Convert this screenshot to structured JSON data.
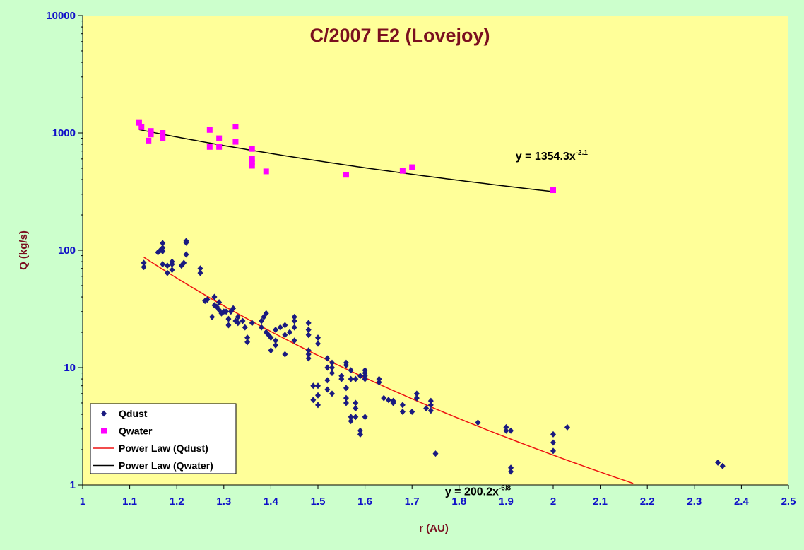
{
  "chart_data": {
    "type": "scatter",
    "title": "C/2007 E2 (Lovejoy)",
    "xlabel": "r (AU)",
    "ylabel": "Q (kg/s)",
    "xlim": [
      1,
      2.5
    ],
    "ylim": [
      1,
      10000
    ],
    "y_scale": "log",
    "x_ticks": [
      "1",
      "1.1",
      "1.2",
      "1.3",
      "1.4",
      "1.5",
      "1.6",
      "1.7",
      "1.8",
      "1.9",
      "2",
      "2.1",
      "2.2",
      "2.3",
      "2.4",
      "2.5"
    ],
    "y_ticks": [
      "1",
      "10",
      "100",
      "1000",
      "10000"
    ],
    "legend_position": "bottom-left",
    "plot_background": "#ffff99",
    "page_background": "#ccffcc",
    "series": [
      {
        "name": "Qdust",
        "color": "#1a1a80",
        "marker": "diamond",
        "points": [
          [
            1.13,
            72
          ],
          [
            1.13,
            78
          ],
          [
            1.16,
            96
          ],
          [
            1.165,
            100
          ],
          [
            1.17,
            105
          ],
          [
            1.17,
            115
          ],
          [
            1.17,
            98
          ],
          [
            1.17,
            76
          ],
          [
            1.18,
            74
          ],
          [
            1.18,
            64
          ],
          [
            1.19,
            68
          ],
          [
            1.19,
            80
          ],
          [
            1.19,
            76
          ],
          [
            1.21,
            74
          ],
          [
            1.215,
            78
          ],
          [
            1.22,
            92
          ],
          [
            1.22,
            120
          ],
          [
            1.22,
            116
          ],
          [
            1.25,
            70
          ],
          [
            1.25,
            64
          ],
          [
            1.26,
            37
          ],
          [
            1.265,
            38
          ],
          [
            1.275,
            27
          ],
          [
            1.28,
            40
          ],
          [
            1.28,
            34
          ],
          [
            1.285,
            33
          ],
          [
            1.29,
            31
          ],
          [
            1.29,
            36
          ],
          [
            1.295,
            29
          ],
          [
            1.3,
            30
          ],
          [
            1.305,
            30
          ],
          [
            1.31,
            26
          ],
          [
            1.31,
            23
          ],
          [
            1.315,
            30
          ],
          [
            1.32,
            32
          ],
          [
            1.325,
            25
          ],
          [
            1.33,
            24
          ],
          [
            1.33,
            27
          ],
          [
            1.34,
            25
          ],
          [
            1.345,
            22
          ],
          [
            1.35,
            18
          ],
          [
            1.35,
            16.5
          ],
          [
            1.36,
            24
          ],
          [
            1.38,
            22
          ],
          [
            1.38,
            25
          ],
          [
            1.385,
            27
          ],
          [
            1.39,
            29
          ],
          [
            1.39,
            20
          ],
          [
            1.395,
            19
          ],
          [
            1.4,
            14
          ],
          [
            1.4,
            18
          ],
          [
            1.41,
            17
          ],
          [
            1.41,
            15.5
          ],
          [
            1.41,
            21
          ],
          [
            1.42,
            22
          ],
          [
            1.43,
            23
          ],
          [
            1.43,
            19
          ],
          [
            1.43,
            13
          ],
          [
            1.44,
            20
          ],
          [
            1.45,
            17
          ],
          [
            1.45,
            22
          ],
          [
            1.45,
            25
          ],
          [
            1.45,
            27
          ],
          [
            1.48,
            24
          ],
          [
            1.48,
            21
          ],
          [
            1.48,
            19
          ],
          [
            1.48,
            14
          ],
          [
            1.48,
            13
          ],
          [
            1.48,
            12
          ],
          [
            1.49,
            7
          ],
          [
            1.49,
            5.3
          ],
          [
            1.5,
            4.8
          ],
          [
            1.5,
            5.8
          ],
          [
            1.5,
            7
          ],
          [
            1.5,
            16
          ],
          [
            1.5,
            18
          ],
          [
            1.52,
            12
          ],
          [
            1.52,
            10
          ],
          [
            1.52,
            7.8
          ],
          [
            1.52,
            6.5
          ],
          [
            1.53,
            11
          ],
          [
            1.53,
            10
          ],
          [
            1.53,
            9
          ],
          [
            1.53,
            6
          ],
          [
            1.55,
            8.5
          ],
          [
            1.55,
            8
          ],
          [
            1.56,
            11
          ],
          [
            1.56,
            10.5
          ],
          [
            1.56,
            6.7
          ],
          [
            1.56,
            5.5
          ],
          [
            1.56,
            5
          ],
          [
            1.57,
            9.5
          ],
          [
            1.57,
            8
          ],
          [
            1.57,
            3.8
          ],
          [
            1.57,
            3.5
          ],
          [
            1.58,
            5
          ],
          [
            1.58,
            4.5
          ],
          [
            1.58,
            3.8
          ],
          [
            1.58,
            8
          ],
          [
            1.59,
            8.5
          ],
          [
            1.59,
            2.9
          ],
          [
            1.59,
            2.7
          ],
          [
            1.6,
            8
          ],
          [
            1.6,
            9.5
          ],
          [
            1.6,
            9
          ],
          [
            1.6,
            3.8
          ],
          [
            1.6,
            8.5
          ],
          [
            1.63,
            7.5
          ],
          [
            1.63,
            8
          ],
          [
            1.64,
            5.5
          ],
          [
            1.65,
            5.3
          ],
          [
            1.66,
            5.2
          ],
          [
            1.66,
            5
          ],
          [
            1.68,
            4.8
          ],
          [
            1.68,
            4.2
          ],
          [
            1.7,
            4.2
          ],
          [
            1.71,
            5.5
          ],
          [
            1.71,
            6
          ],
          [
            1.73,
            4.5
          ],
          [
            1.74,
            4.3
          ],
          [
            1.74,
            4.8
          ],
          [
            1.74,
            5.2
          ],
          [
            1.75,
            1.85
          ],
          [
            1.84,
            3.4
          ],
          [
            1.9,
            3.1
          ],
          [
            1.9,
            2.9
          ],
          [
            1.91,
            2.9
          ],
          [
            1.91,
            1.4
          ],
          [
            1.91,
            1.3
          ],
          [
            2,
            2.7
          ],
          [
            2,
            2.3
          ],
          [
            2,
            1.95
          ],
          [
            2.03,
            3.1
          ],
          [
            2.35,
            1.55
          ],
          [
            2.36,
            1.45
          ]
        ]
      },
      {
        "name": "Qwater",
        "color": "#ff00ff",
        "marker": "square",
        "points": [
          [
            1.12,
            1220
          ],
          [
            1.125,
            1120
          ],
          [
            1.14,
            860
          ],
          [
            1.145,
            1040
          ],
          [
            1.145,
            970
          ],
          [
            1.17,
            1000
          ],
          [
            1.17,
            900
          ],
          [
            1.27,
            1060
          ],
          [
            1.27,
            760
          ],
          [
            1.29,
            900
          ],
          [
            1.29,
            760
          ],
          [
            1.325,
            1130
          ],
          [
            1.325,
            840
          ],
          [
            1.36,
            730
          ],
          [
            1.36,
            600
          ],
          [
            1.36,
            560
          ],
          [
            1.36,
            525
          ],
          [
            1.39,
            470
          ],
          [
            1.56,
            440
          ],
          [
            1.68,
            475
          ],
          [
            1.7,
            510
          ],
          [
            2,
            325
          ]
        ]
      },
      {
        "name": "Power Law (Qdust)",
        "color": "#ee1111",
        "fit": {
          "a": 200.2,
          "b": -6.8,
          "x_range": [
            1.13,
            2.17
          ]
        }
      },
      {
        "name": "Power Law (Qwater)",
        "color": "#000000",
        "fit": {
          "a": 1354.3,
          "b": -2.1,
          "x_range": [
            1.12,
            2.0
          ]
        }
      }
    ],
    "annotations": [
      {
        "prefix": "y = 1354.3x",
        "exponent": "-2.1",
        "at": [
          1.92,
          590
        ]
      },
      {
        "prefix": "y = 200.2x",
        "exponent": "-6.8",
        "at": [
          1.77,
          0.82
        ]
      }
    ]
  }
}
